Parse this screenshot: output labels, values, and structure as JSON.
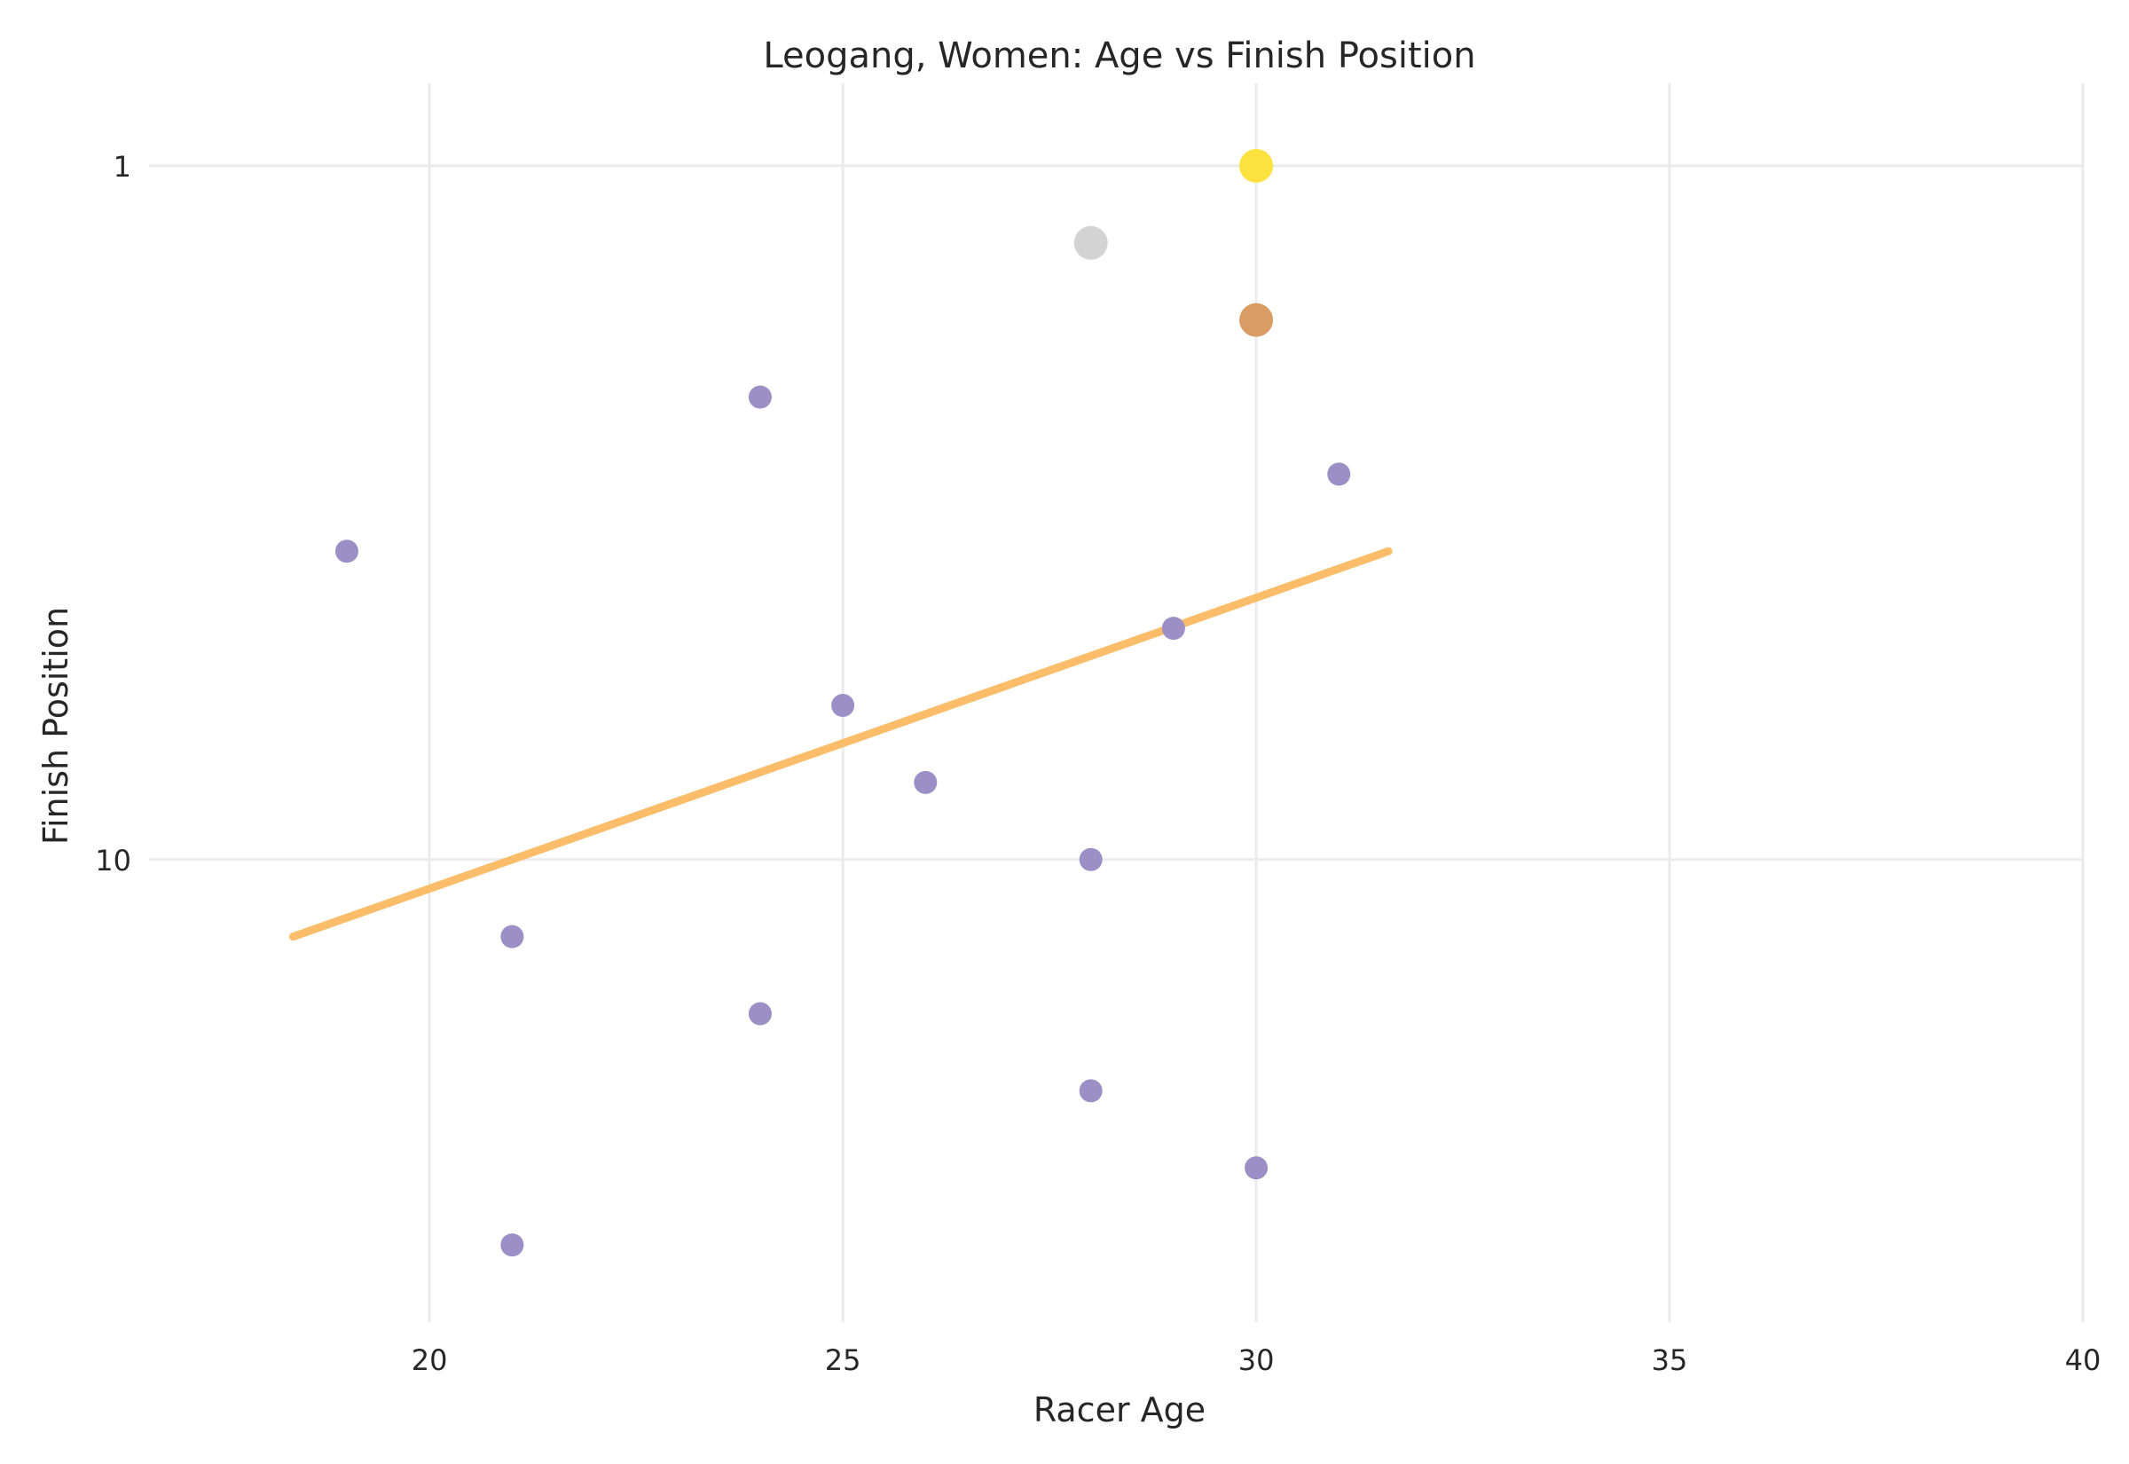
{
  "chart_data": {
    "type": "scatter",
    "title": "Leogang, Women: Age vs Finish Position",
    "xlabel": "Racer Age",
    "ylabel": "Finish Position",
    "xlim": [
      16.5,
      40
    ],
    "ylim": [
      16,
      0
    ],
    "y_scale": "linear, inverted (position 1 at top)",
    "x_ticks": [
      20,
      25,
      30,
      35,
      40
    ],
    "y_ticks": [
      1,
      10
    ],
    "grid": true,
    "legend": "none",
    "colors": {
      "gold": "#fde13f",
      "silver": "#d3d3d3",
      "bronze": "#d99c62",
      "other": "#9b8fc6",
      "trend": "#fbbd6a",
      "grid": "#ebebeb"
    },
    "points": [
      {
        "age": 30,
        "position": 1,
        "group": "gold"
      },
      {
        "age": 28,
        "position": 2,
        "group": "silver"
      },
      {
        "age": 30,
        "position": 3,
        "group": "bronze"
      },
      {
        "age": 24,
        "position": 4,
        "group": "other"
      },
      {
        "age": 31,
        "position": 5,
        "group": "other"
      },
      {
        "age": 19,
        "position": 6,
        "group": "other"
      },
      {
        "age": 29,
        "position": 7,
        "group": "other"
      },
      {
        "age": 25,
        "position": 8,
        "group": "other"
      },
      {
        "age": 26,
        "position": 9,
        "group": "other"
      },
      {
        "age": 28,
        "position": 10,
        "group": "other"
      },
      {
        "age": 21,
        "position": 11,
        "group": "other"
      },
      {
        "age": 24,
        "position": 12,
        "group": "other"
      },
      {
        "age": 28,
        "position": 13,
        "group": "other"
      },
      {
        "age": 30,
        "position": 14,
        "group": "other"
      },
      {
        "age": 21,
        "position": 15,
        "group": "other"
      }
    ],
    "trend_line": {
      "x": [
        18.35,
        31.6
      ],
      "y": [
        11,
        6
      ]
    }
  }
}
